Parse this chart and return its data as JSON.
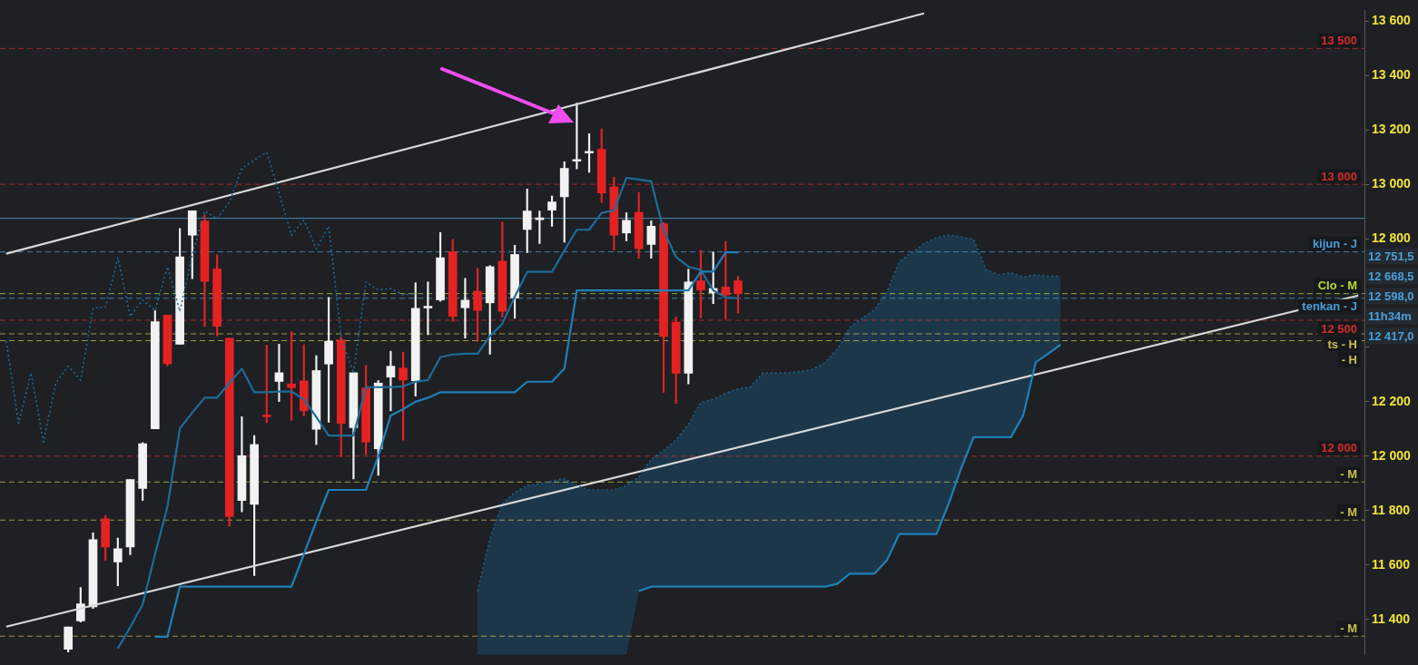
{
  "chart_data": {
    "type": "candlestick",
    "tick_labels": "y",
    "categories": [
      null,
      null,
      null,
      null,
      null,
      null,
      null,
      null,
      null,
      null,
      null,
      null,
      null,
      null,
      null,
      null,
      null,
      null,
      null,
      null,
      null,
      null,
      null,
      null,
      null,
      null,
      null,
      null,
      null,
      null,
      null,
      null,
      null,
      null,
      null,
      null,
      null,
      null,
      null,
      null,
      null,
      null,
      null,
      null,
      null,
      null,
      null,
      null,
      null,
      null,
      null,
      null,
      null,
      null,
      null,
      null,
      null,
      null,
      null,
      null,
      null,
      null,
      null,
      null,
      null,
      null,
      null,
      null,
      null,
      null,
      null,
      null,
      null,
      null,
      null,
      null,
      null,
      null,
      null,
      null,
      null,
      null,
      null,
      null,
      null,
      null,
      null,
      null,
      null,
      null,
      null,
      null,
      null,
      null,
      null,
      null,
      null,
      null,
      null,
      null,
      null,
      null,
      null,
      null,
      null,
      null,
      null,
      null,
      null,
      null
    ],
    "ohlc": [
      null,
      null,
      null,
      null,
      null,
      [
        11290,
        11372,
        11280,
        11372
      ],
      [
        11394,
        11517,
        11390,
        11457
      ],
      [
        11446,
        11718,
        11440,
        11693
      ],
      [
        11770,
        11782,
        11616,
        11666
      ],
      [
        11611,
        11699,
        11523,
        11660
      ],
      [
        11666,
        11914,
        11638,
        11914
      ],
      [
        11881,
        12050,
        11837,
        12046
      ],
      [
        12101,
        12535,
        12101,
        12495
      ],
      [
        12519,
        12519,
        12332,
        12340
      ],
      [
        12412,
        12838,
        12412,
        12733
      ],
      [
        12813,
        12903,
        12653,
        12903
      ],
      [
        12865,
        12887,
        12477,
        12643
      ],
      [
        12689,
        12741,
        12442,
        12478
      ],
      [
        12434,
        12434,
        11743,
        11778
      ],
      [
        11837,
        12145,
        11795,
        12002
      ],
      [
        11823,
        12076,
        11561,
        12043
      ],
      [
        12148,
        12409,
        12123,
        12145
      ],
      [
        12275,
        12412,
        12201,
        12307
      ],
      [
        12266,
        12458,
        12132,
        12252
      ],
      [
        12277,
        12410,
        12148,
        12167
      ],
      [
        12099,
        12370,
        12043,
        12315
      ],
      [
        12339,
        12584,
        12125,
        12423
      ],
      [
        12428,
        12437,
        11998,
        12121
      ],
      [
        12105,
        12307,
        11916,
        12307
      ],
      [
        12251,
        12334,
        12005,
        12052
      ],
      [
        12027,
        12278,
        11930,
        12269
      ],
      [
        12291,
        12386,
        12167,
        12331
      ],
      [
        12324,
        12383,
        12059,
        12280
      ],
      [
        12277,
        12638,
        12221,
        12544
      ],
      [
        12545,
        12641,
        12447,
        12548
      ],
      [
        12575,
        12823,
        12570,
        12730
      ],
      [
        12752,
        12798,
        12496,
        12514
      ],
      [
        12546,
        12654,
        12434,
        12574
      ],
      [
        12607,
        12692,
        12422,
        12536
      ],
      [
        12564,
        12701,
        12375,
        12697
      ],
      [
        12717,
        12861,
        12512,
        12533
      ],
      [
        12582,
        12776,
        12507,
        12742
      ],
      [
        12834,
        12983,
        12749,
        12902
      ],
      [
        12870,
        12902,
        12782,
        12873
      ],
      [
        12905,
        12957,
        12846,
        12935
      ],
      [
        12954,
        13083,
        12787,
        13059
      ],
      [
        13085,
        13299,
        13057,
        13089
      ],
      [
        13115,
        13186,
        13044,
        13118
      ],
      [
        13129,
        13204,
        12933,
        12968
      ],
      [
        12990,
        13026,
        12757,
        12813
      ],
      [
        12821,
        12895,
        12792,
        12868
      ],
      [
        12897,
        12970,
        12728,
        12763
      ],
      [
        12779,
        12866,
        12728,
        12846
      ],
      [
        12855,
        12859,
        12235,
        12440
      ],
      [
        12493,
        12512,
        12194,
        12305
      ],
      [
        12305,
        12688,
        12266,
        12641
      ],
      [
        12645,
        12758,
        12509,
        12611
      ],
      [
        12601,
        12751,
        12561,
        12617
      ],
      [
        12622,
        12790,
        12503,
        12593
      ],
      [
        12645,
        12661,
        12526,
        12598
      ],
      null,
      null,
      null,
      null,
      null,
      null,
      null,
      null,
      null,
      null,
      null,
      null,
      null,
      null,
      null,
      null,
      null,
      null,
      null,
      null,
      null,
      null,
      null,
      null,
      null,
      null,
      null,
      null,
      null,
      null,
      null,
      null,
      null,
      null,
      null,
      null,
      null,
      null,
      null,
      null,
      null,
      null,
      null,
      null,
      null,
      null,
      null,
      null,
      null,
      null
    ],
    "colors": [
      null,
      null,
      null,
      null,
      null,
      "#f2f2f2",
      "#f2f2f2",
      "#f2f2f2",
      "#e52222",
      "#f2f2f2",
      "#f2f2f2",
      "#f2f2f2",
      "#f2f2f2",
      "#e52222",
      "#f2f2f2",
      "#f2f2f2",
      "#e52222",
      "#e52222",
      "#e52222",
      "#f2f2f2",
      "#f2f2f2",
      "#e52222",
      "#f2f2f2",
      "#e52222",
      "#e52222",
      "#f2f2f2",
      "#f2f2f2",
      "#e52222",
      "#f2f2f2",
      "#e52222",
      "#f2f2f2",
      "#f2f2f2",
      "#e52222",
      "#f2f2f2",
      "#f2f2f2",
      "#f2f2f2",
      "#e52222",
      "#f2f2f2",
      "#e52222",
      "#f2f2f2",
      "#e52222",
      "#f2f2f2",
      "#f2f2f2",
      "#f2f2f2",
      "#f2f2f2",
      "#f2f2f2",
      "#f2f2f2",
      "#f2f2f2",
      "#e52222",
      "#e52222",
      "#f2f2f2",
      "#e52222",
      "#f2f2f2",
      "#e52222",
      "#e52222",
      "#f2f2f2",
      "#e52222",
      "#f2f2f2",
      "#e52222",
      "#e52222",
      null,
      null,
      null,
      null,
      null,
      null,
      null,
      null,
      null,
      null,
      null,
      null,
      null,
      null,
      null,
      null,
      null,
      null,
      null,
      null,
      null,
      null,
      null,
      null,
      null,
      null,
      null,
      null,
      null,
      null,
      null,
      null,
      null,
      null,
      null,
      null,
      null,
      null,
      null,
      null,
      null,
      null,
      null,
      null,
      null,
      null,
      null,
      null,
      null,
      null
    ],
    "series": [
      {
        "type": "area",
        "line_style": "dotted",
        "color": "#1c5f88",
        "values": [
          null,
          null,
          null,
          null,
          null,
          null,
          null,
          null,
          null,
          null,
          null,
          null,
          null,
          null,
          null,
          null,
          null,
          null,
          null,
          null,
          null,
          null,
          null,
          null,
          null,
          null,
          null,
          null,
          null,
          null,
          null,
          null,
          null,
          null,
          null,
          null,
          null,
          null,
          11504,
          11698,
          11827,
          11866,
          11892,
          11898,
          11908,
          11918,
          11892,
          11876,
          11876,
          11876,
          11892,
          11924,
          11989,
          12021,
          12060,
          12118,
          12199,
          12209,
          12232,
          12248,
          12254,
          12306,
          12306,
          12306,
          12312,
          12319,
          12345,
          12393,
          12474,
          12507,
          12539,
          12604,
          12717,
          12749,
          12782,
          12804,
          12814,
          12807,
          12798,
          12685,
          12668,
          12675,
          12659,
          12668,
          12662,
          12662,
          null,
          null,
          null,
          null,
          null,
          null,
          null,
          null,
          null,
          null,
          null,
          null,
          null,
          null,
          null,
          null,
          null,
          null,
          null,
          null,
          null,
          null,
          null,
          null
        ]
      },
      {
        "type": "line",
        "color": "#1f80b8",
        "values": [
          null,
          null,
          null,
          null,
          null,
          null,
          null,
          null,
          null,
          null,
          null,
          null,
          null,
          null,
          null,
          null,
          null,
          null,
          null,
          null,
          null,
          null,
          null,
          null,
          null,
          null,
          null,
          null,
          null,
          null,
          null,
          null,
          null,
          null,
          null,
          null,
          null,
          null,
          null,
          null,
          null,
          null,
          null,
          null,
          null,
          null,
          null,
          null,
          null,
          null,
          null,
          11504,
          11520,
          11520,
          11520,
          11520,
          11520,
          11520,
          11520,
          11520,
          11520,
          11520,
          11520,
          11520,
          11520,
          11520,
          11520,
          11530,
          11568,
          11568,
          11568,
          11617,
          11714,
          11714,
          11714,
          11714,
          11827,
          11957,
          12070,
          12070,
          12070,
          12070,
          12151,
          12345,
          12377,
          12410,
          null,
          null,
          null,
          null,
          null,
          null,
          null,
          null,
          null,
          null,
          null,
          null,
          null,
          null,
          null,
          null,
          null,
          null,
          null,
          null,
          null,
          null,
          null,
          null
        ]
      },
      {
        "type": "line",
        "color": "#1f80b8",
        "values": [
          null,
          null,
          null,
          null,
          null,
          null,
          null,
          null,
          null,
          null,
          null,
          null,
          11336,
          11336,
          11520,
          11520,
          11520,
          11520,
          11520,
          11520,
          11520,
          11520,
          11520,
          11520,
          11640,
          11760,
          11876,
          11876,
          11876,
          11876,
          12000,
          12150,
          12173,
          12200,
          12215,
          12235,
          12235,
          12235,
          12235,
          12235,
          12235,
          12235,
          12274,
          12274,
          12274,
          12322,
          12610,
          12610,
          12610,
          12610,
          12610,
          12610,
          12610,
          12610,
          12610,
          12610,
          12679,
          12679,
          12750,
          12750,
          null,
          null,
          null,
          null,
          null,
          null,
          null,
          null,
          null,
          null,
          null,
          null,
          null,
          null,
          null,
          null,
          null,
          null,
          null,
          null,
          null,
          null,
          null,
          null,
          null,
          null,
          null,
          null,
          null,
          null,
          null,
          null,
          null,
          null,
          null,
          null,
          null,
          null,
          null,
          null,
          null,
          null,
          null,
          null,
          null,
          null,
          null,
          null,
          null,
          null
        ]
      },
      {
        "type": "line",
        "color": "#1d6c99",
        "values": [
          null,
          null,
          null,
          null,
          null,
          null,
          null,
          null,
          null,
          11293,
          11371,
          11455,
          11640,
          11814,
          12102,
          12160,
          12215,
          12215,
          12270,
          12322,
          12235,
          12235,
          12238,
          12238,
          12209,
          12144,
          12076,
          12076,
          12076,
          12254,
          12254,
          12254,
          12257,
          12274,
          12280,
          12364,
          12374,
          12377,
          12377,
          12442,
          12487,
          12587,
          12678,
          12678,
          12678,
          12756,
          12833,
          12833,
          12895,
          12904,
          13024,
          13018,
          13011,
          12830,
          12733,
          12697,
          12685,
          12610,
          12584,
          12581,
          null,
          null,
          null,
          null,
          null,
          null,
          null,
          null,
          null,
          null,
          null,
          null,
          null,
          null,
          null,
          null,
          null,
          null,
          null,
          null,
          null,
          null,
          null,
          null,
          null,
          null,
          null,
          null,
          null,
          null,
          null,
          null,
          null,
          null,
          null,
          null,
          null,
          null,
          null,
          null,
          null,
          null,
          null,
          null,
          null,
          null,
          null,
          null,
          null,
          null
        ]
      },
      {
        "type": "line",
        "line_style": "dotted",
        "color": "#1d6c99",
        "values": [
          12423,
          12121,
          12307,
          12052,
          12269,
          12331,
          12280,
          12544,
          12548,
          12730,
          12514,
          12574,
          12536,
          12697,
          12533,
          12742,
          12902,
          12873,
          12935,
          13059,
          13089,
          13118,
          12968,
          12813,
          12868,
          12763,
          12846,
          12440,
          12305,
          12641,
          12611,
          12617,
          12593,
          12598,
          null,
          null,
          null,
          null,
          null,
          null,
          null,
          null,
          null,
          null,
          null,
          null,
          null,
          null,
          null,
          null,
          null,
          null,
          null,
          null,
          null,
          null,
          null,
          null,
          null,
          null,
          null,
          null,
          null,
          null,
          null,
          null,
          null,
          null,
          null,
          null,
          null,
          null,
          null,
          null,
          null,
          null,
          null,
          null,
          null,
          null,
          null,
          null,
          null,
          null,
          null,
          null,
          null,
          null,
          null,
          null,
          null,
          null,
          null,
          null,
          null,
          null,
          null,
          null,
          null,
          null,
          null,
          null,
          null,
          null,
          null,
          null,
          null,
          null,
          null,
          null
        ]
      },
      {
        "type": "line",
        "color": "#d8d8d8",
        "values": [
          12745,
          null,
          null,
          null,
          null,
          null,
          null,
          null,
          null,
          null,
          null,
          null,
          null,
          null,
          null,
          null,
          null,
          null,
          null,
          null,
          null,
          null,
          null,
          null,
          null,
          null,
          null,
          null,
          null,
          null,
          null,
          null,
          null,
          null,
          null,
          null,
          null,
          null,
          null,
          null,
          null,
          null,
          null,
          null,
          null,
          null,
          null,
          null,
          null,
          null,
          null,
          null,
          null,
          null,
          null,
          null,
          null,
          null,
          null,
          null,
          null,
          null,
          null,
          null,
          null,
          null,
          null,
          null,
          null,
          null,
          null,
          null,
          null,
          null,
          13629,
          null,
          null,
          null,
          null,
          null,
          null,
          null,
          null,
          null,
          null,
          null,
          null,
          null,
          null,
          null,
          null,
          null,
          null,
          null,
          null,
          null,
          null,
          null,
          null,
          null,
          null,
          null,
          null,
          null,
          null,
          null,
          null,
          null,
          null,
          null
        ]
      },
      {
        "type": "line",
        "color": "#d8d8d8",
        "values": [
          11373,
          null,
          null,
          null,
          null,
          null,
          null,
          null,
          null,
          null,
          null,
          null,
          null,
          null,
          null,
          null,
          null,
          null,
          null,
          null,
          null,
          null,
          null,
          null,
          null,
          null,
          null,
          null,
          null,
          null,
          null,
          null,
          null,
          null,
          null,
          null,
          null,
          null,
          null,
          null,
          null,
          null,
          null,
          null,
          null,
          null,
          null,
          null,
          null,
          null,
          null,
          null,
          null,
          null,
          null,
          null,
          null,
          null,
          null,
          null,
          null,
          null,
          null,
          null,
          null,
          null,
          null,
          null,
          null,
          null,
          null,
          null,
          null,
          null,
          null,
          null,
          null,
          null,
          null,
          null,
          null,
          null,
          null,
          null,
          null,
          null,
          null,
          null,
          null,
          null,
          null,
          null,
          null,
          null,
          null,
          null,
          null,
          null,
          null,
          null,
          null,
          null,
          null,
          null,
          null,
          null,
          null,
          null,
          null,
          12591
        ]
      }
    ],
    "ylim": [
      11270,
      13640
    ],
    "yticks": [
      {
        "value": 11400,
        "label": "11 400"
      },
      {
        "value": 11600,
        "label": "11 600"
      },
      {
        "value": 11800,
        "label": "11 800"
      },
      {
        "value": 12000,
        "label": "12 000"
      },
      {
        "value": 12200,
        "label": "12 200"
      },
      {
        "value": 12400,
        "label": null
      },
      {
        "value": 12600,
        "label": null
      },
      {
        "value": 12800,
        "label": "12 800"
      },
      {
        "value": 13000,
        "label": "13 000"
      },
      {
        "value": 13200,
        "label": "13 200"
      },
      {
        "value": 13400,
        "label": "13 400"
      },
      {
        "value": 13600,
        "label": "13 600"
      }
    ],
    "ref_lines": [
      {
        "axis": "y",
        "value": 13500,
        "label": "13 500",
        "color": "#d42a2a",
        "line_style": "dashed"
      },
      {
        "axis": "y",
        "value": 13000,
        "label": "13 000",
        "color": "#d42a2a",
        "line_style": "dashed"
      },
      {
        "axis": "y",
        "value": 12875,
        "color": "#5aaee0",
        "line_style": "solid"
      },
      {
        "axis": "y",
        "value": 12751.5,
        "label": "kijun - J",
        "color": "#4a9fd8",
        "line_style": "dashed"
      },
      {
        "axis": "y",
        "value": 12598,
        "label": "Clo - M",
        "color": "#b8d830",
        "line_style": "dashed"
      },
      {
        "axis": "y",
        "value": 12581,
        "label": "tenkan - J",
        "color": "#4a9fd8",
        "line_style": "dashed"
      },
      {
        "axis": "y",
        "value": 12500,
        "label": "12 500",
        "color": "#d42a2a",
        "line_style": "dashed"
      },
      {
        "axis": "y",
        "value": 12450,
        "label": "ts - H",
        "color": "#c9c24a",
        "line_style": "dashed"
      },
      {
        "axis": "y",
        "value": 12425,
        "label": "- H",
        "color": "#c9c24a",
        "line_style": "dashed"
      },
      {
        "axis": "y",
        "value": 12000,
        "label": "12 000",
        "color": "#d42a2a",
        "line_style": "dashed"
      },
      {
        "axis": "y",
        "value": 11905,
        "label": "- M",
        "color": "#c9c24a",
        "line_style": "dashed"
      },
      {
        "axis": "y",
        "value": 11765,
        "label": "- M",
        "color": "#c9c24a",
        "line_style": "dashed"
      },
      {
        "axis": "y",
        "value": 11338,
        "label": "- M",
        "color": "#c9c24a",
        "line_style": "dashed"
      }
    ],
    "annotations": [
      "12 751,5",
      "12 668,5",
      "12 598,0",
      "11h34m",
      "12 417,0"
    ]
  }
}
